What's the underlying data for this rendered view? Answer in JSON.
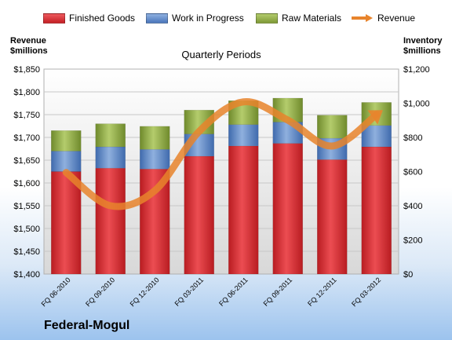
{
  "chart_data": {
    "type": "bar",
    "title": "Quarterly Periods",
    "company": "Federal-Mogul",
    "left_axis_label_line1": "Revenue",
    "left_axis_label_line2": "$millions",
    "right_axis_label_line1": "Inventory",
    "right_axis_label_line2": "$millions",
    "categories": [
      "FQ 06-2010",
      "FQ 09-2010",
      "FQ 12-2010",
      "FQ 03-2011",
      "FQ 06-2011",
      "FQ 09-2011",
      "FQ 12-2011",
      "FQ 03-2012"
    ],
    "stacked_axis": "right",
    "series": [
      {
        "name": "Finished Goods",
        "color": "#d8262b",
        "values": [
          600,
          620,
          615,
          690,
          750,
          765,
          670,
          745
        ]
      },
      {
        "name": "Work in Progress",
        "color": "#5b86c7",
        "values": [
          120,
          125,
          115,
          130,
          125,
          125,
          125,
          125
        ]
      },
      {
        "name": "Raw Materials",
        "color": "#8dab41",
        "values": [
          120,
          135,
          135,
          140,
          140,
          140,
          135,
          135
        ]
      }
    ],
    "line_series": {
      "name": "Revenue",
      "color": "#e8842c",
      "axis": "left",
      "values": [
        1623,
        1550,
        1583,
        1713,
        1778,
        1738,
        1681,
        1750
      ]
    },
    "left_axis": {
      "min": 1400,
      "max": 1850,
      "ticks": [
        "$1,400",
        "$1,450",
        "$1,500",
        "$1,550",
        "$1,600",
        "$1,650",
        "$1,700",
        "$1,750",
        "$1,800",
        "$1,850"
      ]
    },
    "right_axis": {
      "min": 0,
      "max": 1200,
      "ticks": [
        "$0",
        "$200",
        "$400",
        "$600",
        "$800",
        "$1,000",
        "$1,200"
      ]
    },
    "grid": true,
    "legend_position": "top"
  }
}
